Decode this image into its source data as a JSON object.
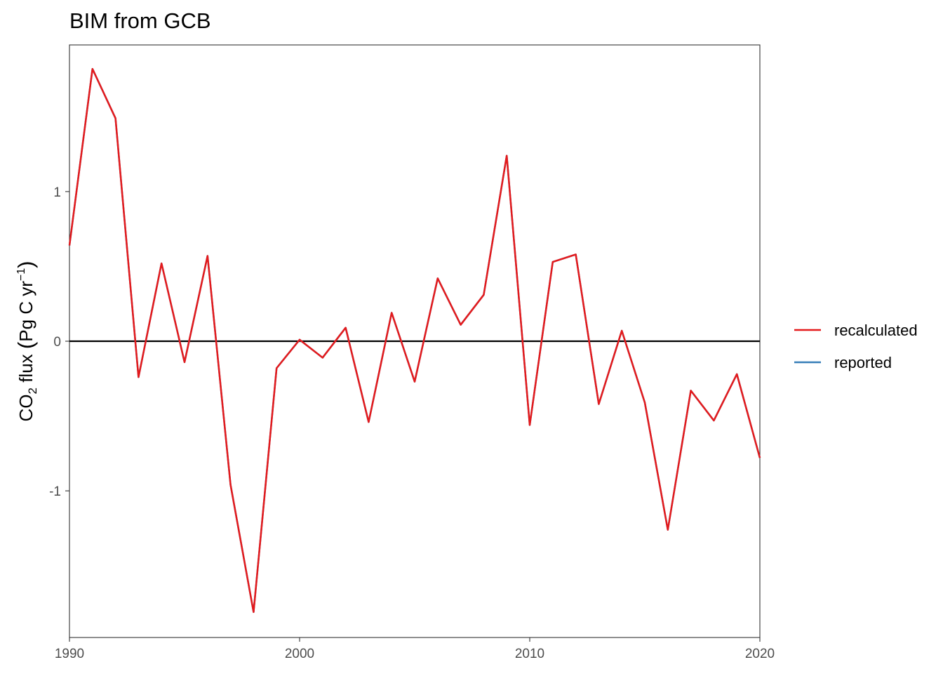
{
  "chart_data": {
    "type": "line",
    "title": "BIM from GCB",
    "xlabel": "",
    "ylabel": {
      "pre": "CO",
      "sub": "2",
      "mid": " flux ",
      "open": "(",
      "unit": "Pg C yr",
      "sup": "−1",
      "close": ")"
    },
    "xlim": [
      1990,
      2020
    ],
    "ylim": [
      -1.98,
      1.98
    ],
    "x_ticks": [
      {
        "value": 1990,
        "label": "1990"
      },
      {
        "value": 2000,
        "label": "2000"
      },
      {
        "value": 2010,
        "label": "2010"
      },
      {
        "value": 2020,
        "label": "2020"
      }
    ],
    "y_ticks": [
      {
        "value": -1,
        "label": "-1"
      },
      {
        "value": 0,
        "label": "0"
      },
      {
        "value": 1,
        "label": "1"
      }
    ],
    "hline": 0,
    "grid": false,
    "legend_position": "right",
    "x": [
      1990,
      1991,
      1992,
      1993,
      1994,
      1995,
      1996,
      1997,
      1998,
      1999,
      2000,
      2001,
      2002,
      2003,
      2004,
      2005,
      2006,
      2007,
      2008,
      2009,
      2010,
      2011,
      2012,
      2013,
      2014,
      2015,
      2016,
      2017,
      2018,
      2019,
      2020
    ],
    "series": [
      {
        "name": "reported",
        "color": "#377eb8",
        "values": [
          0.64,
          1.82,
          1.49,
          -0.24,
          0.52,
          -0.14,
          0.57,
          -0.96,
          -1.81,
          -0.18,
          0.01,
          -0.11,
          0.09,
          -0.54,
          0.19,
          -0.27,
          0.42,
          0.11,
          0.31,
          1.24,
          -0.56,
          0.53,
          0.58,
          -0.42,
          0.07,
          -0.41,
          -1.26,
          -0.33,
          -0.53,
          -0.22,
          -0.78
        ]
      },
      {
        "name": "recalculated",
        "color": "#e41a1c",
        "values": [
          0.64,
          1.82,
          1.49,
          -0.24,
          0.52,
          -0.14,
          0.57,
          -0.96,
          -1.81,
          -0.18,
          0.01,
          -0.11,
          0.09,
          -0.54,
          0.19,
          -0.27,
          0.42,
          0.11,
          0.31,
          1.24,
          -0.56,
          0.53,
          0.58,
          -0.42,
          0.07,
          -0.41,
          -1.26,
          -0.33,
          -0.53,
          -0.22,
          -0.78
        ]
      }
    ],
    "legend": [
      {
        "name": "recalculated",
        "color": "#e41a1c"
      },
      {
        "name": "reported",
        "color": "#377eb8"
      }
    ]
  }
}
